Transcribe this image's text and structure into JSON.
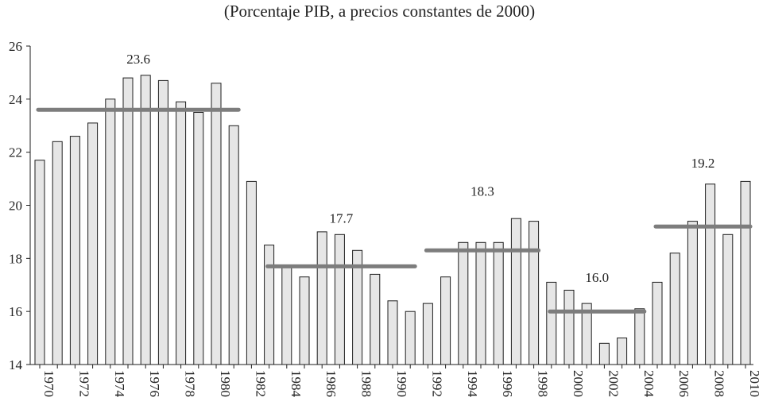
{
  "chart_data": {
    "type": "bar",
    "title": "",
    "subtitle": "(Porcentaje PIB, a precios constantes de 2000)",
    "xlabel": "",
    "ylabel": "",
    "ylim": [
      14,
      26
    ],
    "yticks": [
      14,
      16,
      18,
      20,
      22,
      24,
      26
    ],
    "grid": false,
    "categories": [
      "1970",
      "1971",
      "1972",
      "1973",
      "1974",
      "1975",
      "1976",
      "1977",
      "1978",
      "1979",
      "1980",
      "1981",
      "1982",
      "1983",
      "1984",
      "1985",
      "1986",
      "1987",
      "1988",
      "1989",
      "1990",
      "1991",
      "1992",
      "1993",
      "1994",
      "1995",
      "1996",
      "1997",
      "1998",
      "1999",
      "2000",
      "2001",
      "2002",
      "2003",
      "2004",
      "2005",
      "2006",
      "2007",
      "2008",
      "2009",
      "2010"
    ],
    "xtick_labels": [
      "1970",
      "1972",
      "1974",
      "1976",
      "1978",
      "1980",
      "1982",
      "1984",
      "1986",
      "1988",
      "1990",
      "1992",
      "1994",
      "1996",
      "1998",
      "2000",
      "2002",
      "2004",
      "2006",
      "2008",
      "2010"
    ],
    "values": [
      21.7,
      22.4,
      22.6,
      23.1,
      24.0,
      24.8,
      24.9,
      24.7,
      23.9,
      23.5,
      24.6,
      23.0,
      20.9,
      18.5,
      17.7,
      17.3,
      19.0,
      18.9,
      18.3,
      17.4,
      16.4,
      16.0,
      16.3,
      17.3,
      18.6,
      18.6,
      18.6,
      19.5,
      19.4,
      17.1,
      16.8,
      16.3,
      14.8,
      15.0,
      16.1,
      17.1,
      18.2,
      19.4,
      20.8,
      18.9,
      20.9
    ],
    "period_averages": [
      {
        "label": "23.6",
        "value": 23.6,
        "from": "1970",
        "to": "1981"
      },
      {
        "label": "17.7",
        "value": 17.7,
        "from": "1983",
        "to": "1991"
      },
      {
        "label": "18.3",
        "value": 18.3,
        "from": "1992",
        "to": "1998"
      },
      {
        "label": "16.0",
        "value": 16.0,
        "from": "1999",
        "to": "2004"
      },
      {
        "label": "19.2",
        "value": 19.2,
        "from": "2005",
        "to": "2010"
      }
    ]
  }
}
